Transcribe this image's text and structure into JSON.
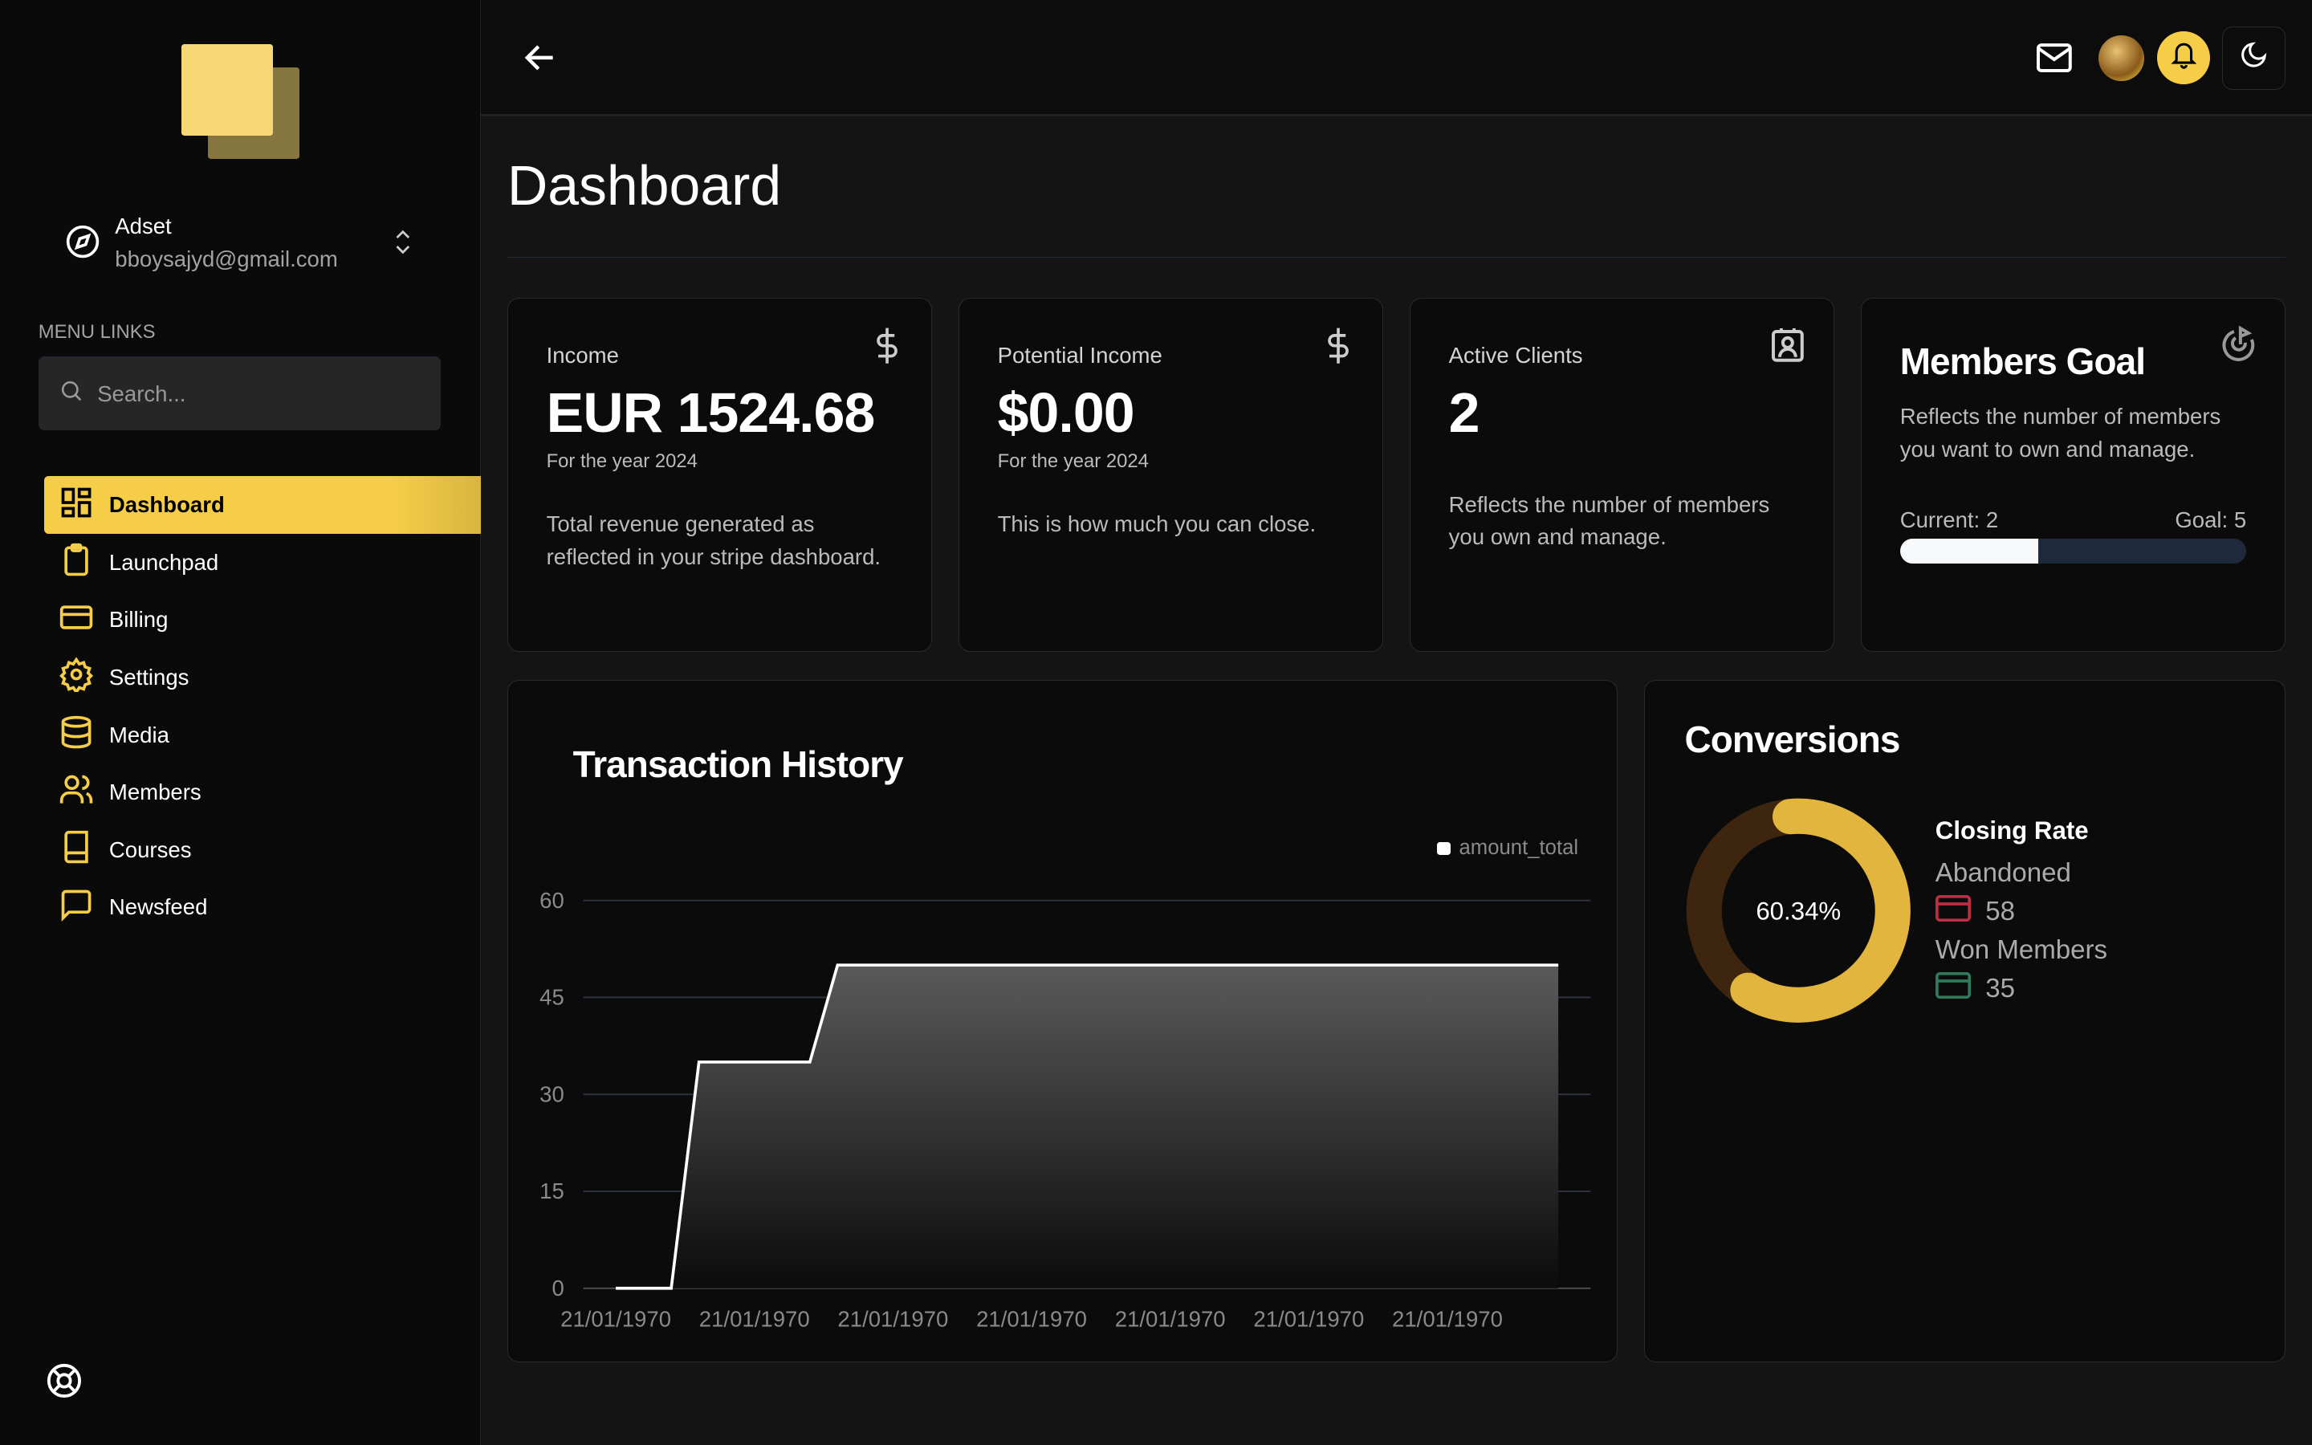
{
  "account": {
    "name": "Adset",
    "email": "bboysajyd@gmail.com"
  },
  "sidebar": {
    "menu_label": "MENU LINKS",
    "search_placeholder": "Search...",
    "items": [
      {
        "label": "Dashboard",
        "icon": "dashboard-icon",
        "active": true
      },
      {
        "label": "Launchpad",
        "icon": "clipboard-icon"
      },
      {
        "label": "Billing",
        "icon": "credit-card-icon"
      },
      {
        "label": "Settings",
        "icon": "gear-icon"
      },
      {
        "label": "Media",
        "icon": "database-icon"
      },
      {
        "label": "Members",
        "icon": "users-icon"
      },
      {
        "label": "Courses",
        "icon": "book-icon"
      },
      {
        "label": "Newsfeed",
        "icon": "message-icon"
      }
    ]
  },
  "page": {
    "title": "Dashboard"
  },
  "cards": {
    "income": {
      "label": "Income",
      "value": "EUR 1524.68",
      "sub": "For the year 2024",
      "desc": "Total revenue generated as reflected in your stripe dashboard."
    },
    "potential": {
      "label": "Potential Income",
      "value": "$0.00",
      "sub": "For the year 2024",
      "desc": "This is how much you can close."
    },
    "clients": {
      "label": "Active Clients",
      "value": "2",
      "desc": "Reflects the number of members you own and manage."
    },
    "goal": {
      "title": "Members Goal",
      "desc": "Reflects the number of members you want to own and manage.",
      "current_label": "Current: 2",
      "goal_label": "Goal: 5",
      "progress_percent": 40
    }
  },
  "conversions": {
    "title": "Conversions",
    "center": "60.34%",
    "closing_label": "Closing Rate",
    "abandoned_label": "Abandoned",
    "abandoned": "58",
    "won_label": "Won Members",
    "won": "35",
    "colors": {
      "won": "#e2b53e",
      "abandoned": "#3d250f"
    }
  },
  "chart_data": {
    "type": "area",
    "title": "Transaction History",
    "legend": [
      "amount_total"
    ],
    "legend_position": "top-right",
    "x_ticks": [
      "21/01/1970",
      "21/01/1970",
      "21/01/1970",
      "21/01/1970",
      "21/01/1970",
      "21/01/1970",
      "21/01/1970"
    ],
    "y_ticks": [
      0,
      15,
      30,
      45,
      60
    ],
    "ylim": [
      0,
      60
    ],
    "grid": true,
    "series": [
      {
        "name": "amount_total",
        "points": [
          [
            0,
            0
          ],
          [
            0.4,
            0
          ],
          [
            0.6,
            35
          ],
          [
            1.4,
            35
          ],
          [
            1.6,
            50
          ],
          [
            6.8,
            50
          ]
        ]
      }
    ]
  }
}
